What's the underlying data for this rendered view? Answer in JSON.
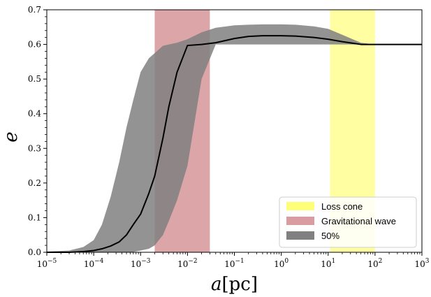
{
  "chart_data": {
    "type": "line",
    "xlabel_var": "a",
    "xlabel_unit": "[pc]",
    "ylabel": "e",
    "x_scale": "log",
    "xlim": [
      1e-05,
      1000
    ],
    "ylim": [
      0,
      0.7
    ],
    "grid": false,
    "legend_placement": "lower-right",
    "x_ticks": [
      {
        "value": 1e-05,
        "base": "10",
        "exp": "−5"
      },
      {
        "value": 0.0001,
        "base": "10",
        "exp": "−4"
      },
      {
        "value": 0.001,
        "base": "10",
        "exp": "−3"
      },
      {
        "value": 0.01,
        "base": "10",
        "exp": "−2"
      },
      {
        "value": 0.1,
        "base": "10",
        "exp": "−1"
      },
      {
        "value": 1,
        "base": "10",
        "exp": "0"
      },
      {
        "value": 10,
        "base": "10",
        "exp": "1"
      },
      {
        "value": 100,
        "base": "10",
        "exp": "2"
      },
      {
        "value": 1000,
        "base": "10",
        "exp": "3"
      }
    ],
    "y_ticks": [
      {
        "value": 0.0,
        "label": "0.0"
      },
      {
        "value": 0.1,
        "label": "0.1"
      },
      {
        "value": 0.2,
        "label": "0.2"
      },
      {
        "value": 0.3,
        "label": "0.3"
      },
      {
        "value": 0.4,
        "label": "0.4"
      },
      {
        "value": 0.5,
        "label": "0.5"
      },
      {
        "value": 0.6,
        "label": "0.6"
      },
      {
        "value": 0.7,
        "label": "0.7"
      }
    ],
    "median_line": {
      "color": "#000000",
      "x": [
        1e-05,
        3e-05,
        6e-05,
        0.0001,
        0.00015,
        0.00023,
        0.00035,
        0.0005,
        0.0007,
        0.001,
        0.0015,
        0.002,
        0.003,
        0.004,
        0.006,
        0.01,
        0.02,
        0.04,
        0.1,
        0.2,
        0.4,
        1,
        2,
        5,
        10,
        20,
        50,
        100,
        300,
        1000
      ],
      "y": [
        0.0,
        0.0,
        0.002,
        0.005,
        0.01,
        0.018,
        0.03,
        0.05,
        0.08,
        0.11,
        0.17,
        0.22,
        0.33,
        0.42,
        0.52,
        0.597,
        0.6,
        0.605,
        0.617,
        0.623,
        0.625,
        0.625,
        0.624,
        0.62,
        0.615,
        0.608,
        0.6,
        0.6,
        0.6,
        0.6
      ]
    },
    "band_50pct": {
      "label": "50%",
      "color": "#808080",
      "x": [
        1e-05,
        3e-05,
        6e-05,
        0.0001,
        0.00015,
        0.00023,
        0.00035,
        0.0005,
        0.0007,
        0.001,
        0.0015,
        0.002,
        0.003,
        0.004,
        0.006,
        0.01,
        0.02,
        0.04,
        0.1,
        0.2,
        0.4,
        1,
        2,
        5,
        10,
        20,
        50,
        100,
        300,
        1000
      ],
      "y_low": [
        0.0,
        0.0,
        0.0,
        0.0,
        0.0,
        0.0,
        0.0,
        0.0,
        0.001,
        0.005,
        0.01,
        0.02,
        0.05,
        0.09,
        0.15,
        0.25,
        0.5,
        0.6,
        0.6,
        0.6,
        0.6,
        0.6,
        0.6,
        0.6,
        0.6,
        0.6,
        0.6,
        0.6,
        0.6,
        0.6
      ],
      "y_high": [
        0.002,
        0.005,
        0.015,
        0.035,
        0.08,
        0.16,
        0.26,
        0.36,
        0.44,
        0.52,
        0.56,
        0.575,
        0.596,
        0.6,
        0.605,
        0.615,
        0.635,
        0.648,
        0.655,
        0.657,
        0.658,
        0.658,
        0.657,
        0.652,
        0.645,
        0.628,
        0.605,
        0.6,
        0.6,
        0.6
      ]
    },
    "regions": [
      {
        "label": "Gravitational wave",
        "x_start": 0.002,
        "x_end": 0.03,
        "color": "#c46a6f",
        "opacity": 0.6
      },
      {
        "label": "Loss cone",
        "x_start": 11,
        "x_end": 100,
        "color": "#ffff55",
        "opacity": 0.55
      }
    ],
    "legend": [
      {
        "label": "Loss cone",
        "color": "#ffff77"
      },
      {
        "label": "Gravitational wave",
        "color": "#d99ca0"
      },
      {
        "label": "50%",
        "color": "#808080"
      }
    ]
  }
}
